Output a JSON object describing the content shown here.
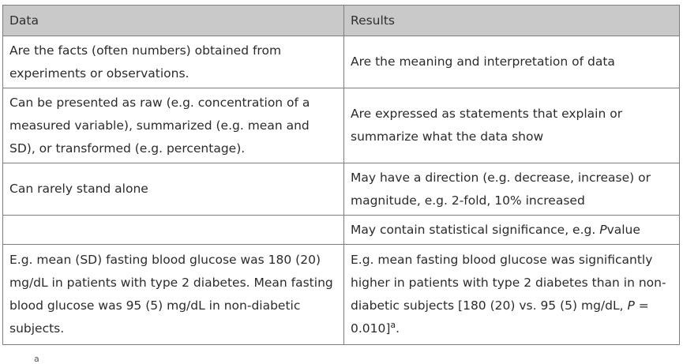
{
  "table": {
    "headers": [
      "Data",
      "Results"
    ],
    "rows": [
      {
        "data": "Are the facts (often numbers) obtained from experiments or observations.",
        "results": "Are the meaning and interpretation of data"
      },
      {
        "data": "Can be presented as raw (e.g. concentration of a measured variable), summarized (e.g. mean and SD), or transformed (e.g. percentage).",
        "results": "Are expressed as statements that explain or summarize what the data show"
      },
      {
        "data": "Can rarely stand alone",
        "results": "May have a direction (e.g. decrease, increase) or magnitude, e.g. 2-fold, 10% increased"
      },
      {
        "data": "",
        "results_prefix": "May contain statistical significance, e.g. ",
        "results_italic": "P",
        "results_suffix": "value"
      },
      {
        "data": "E.g. mean (SD) fasting blood glucose was 180 (20) mg/dL in patients with type 2 diabetes. Mean fasting blood glucose was 95 (5) mg/dL in non-diabetic subjects.",
        "results_prefix": "E.g. mean fasting blood glucose was significantly higher in patients with type 2 diabetes than in non-diabetic subjects [180 (20) vs. 95 (5) mg/dL, ",
        "results_italic": "P",
        "results_mid": " = 0.010]",
        "results_sup": "a",
        "results_suffix": "."
      }
    ]
  },
  "footnote_marker": "a"
}
